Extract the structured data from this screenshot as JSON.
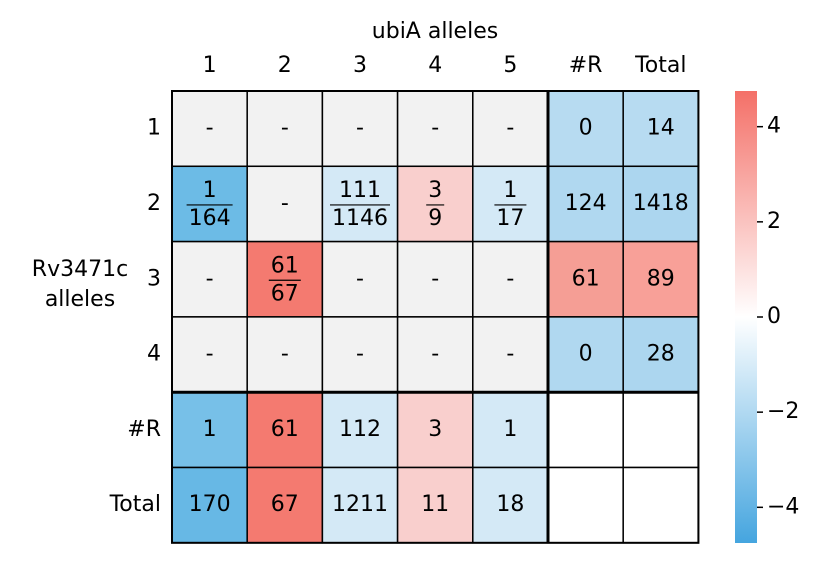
{
  "chart_data": {
    "type": "heatmap",
    "title": "ubiA alleles",
    "ylabel": "Rv3471c alleles",
    "columns": [
      "1",
      "2",
      "3",
      "4",
      "5",
      "#R",
      "Total"
    ],
    "rows": [
      "1",
      "2",
      "3",
      "4",
      "#R",
      "Total"
    ],
    "cells": [
      [
        {
          "label": "-",
          "color": "#f2f2f2"
        },
        {
          "label": "-",
          "color": "#f2f2f2"
        },
        {
          "label": "-",
          "color": "#f2f2f2"
        },
        {
          "label": "-",
          "color": "#f2f2f2"
        },
        {
          "label": "-",
          "color": "#f2f2f2"
        },
        {
          "label": 0,
          "color": "#b7dbf1"
        },
        {
          "label": 14,
          "color": "#b7dbf1"
        }
      ],
      [
        {
          "numerator": 1,
          "denominator": 164,
          "color": "#6cbbe6"
        },
        {
          "label": "-",
          "color": "#f2f2f2"
        },
        {
          "numerator": 111,
          "denominator": 1146,
          "color": "#d4e9f6"
        },
        {
          "numerator": 3,
          "denominator": 9,
          "color": "#f9cfcd"
        },
        {
          "numerator": 1,
          "denominator": 17,
          "color": "#d4e9f6"
        },
        {
          "label": 124,
          "color": "#b0d8f0"
        },
        {
          "label": 1418,
          "color": "#acd6ef"
        }
      ],
      [
        {
          "label": "-",
          "color": "#f2f2f2"
        },
        {
          "numerator": 61,
          "denominator": 67,
          "color": "#f47a70"
        },
        {
          "label": "-",
          "color": "#f2f2f2"
        },
        {
          "label": "-",
          "color": "#f2f2f2"
        },
        {
          "label": "-",
          "color": "#f2f2f2"
        },
        {
          "label": 61,
          "color": "#f59e95"
        },
        {
          "label": 89,
          "color": "#f8a098"
        }
      ],
      [
        {
          "label": "-",
          "color": "#f2f2f2"
        },
        {
          "label": "-",
          "color": "#f2f2f2"
        },
        {
          "label": "-",
          "color": "#f2f2f2"
        },
        {
          "label": "-",
          "color": "#f2f2f2"
        },
        {
          "label": "-",
          "color": "#f2f2f2"
        },
        {
          "label": 0,
          "color": "#b0d8f0"
        },
        {
          "label": 28,
          "color": "#acd6ef"
        }
      ],
      [
        {
          "label": 1,
          "color": "#77c0e8"
        },
        {
          "label": 61,
          "color": "#f47a70"
        },
        {
          "label": 112,
          "color": "#d4e9f6"
        },
        {
          "label": 3,
          "color": "#f9cfcd"
        },
        {
          "label": 1,
          "color": "#d4e9f6"
        },
        {
          "color": "#ffffff"
        },
        {
          "color": "#ffffff"
        }
      ],
      [
        {
          "label": 170,
          "color": "#67b8e5"
        },
        {
          "label": 67,
          "color": "#f47a70"
        },
        {
          "label": 1211,
          "color": "#d4e9f6"
        },
        {
          "label": 11,
          "color": "#f9cfcd"
        },
        {
          "label": 18,
          "color": "#d4e9f6"
        },
        {
          "color": "#ffffff"
        },
        {
          "color": "#ffffff"
        }
      ]
    ],
    "colormap": [
      "#45a5df",
      "#ffffff",
      "#f47068"
    ],
    "clim": [
      -4.75,
      4.75
    ],
    "cticks": [
      {
        "value": -4,
        "label": "−4"
      },
      {
        "value": -2,
        "label": "−2"
      },
      0,
      2,
      4
    ]
  }
}
